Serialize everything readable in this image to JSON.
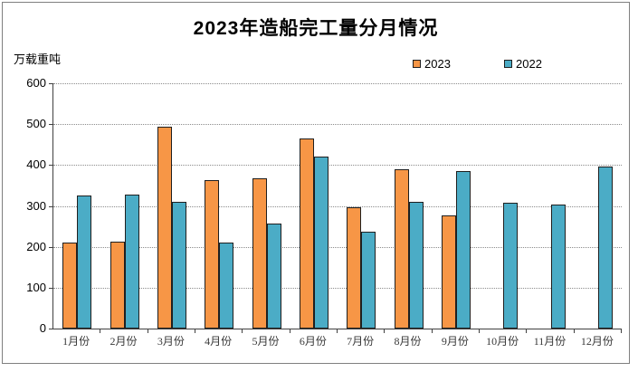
{
  "page": {
    "background_color": "#ffffff",
    "frame_border_color": "#7f7f7f"
  },
  "chart_data": {
    "type": "bar",
    "title": "2023年造船完工量分月情况",
    "unit_label": "万载重吨",
    "xlabel": "",
    "ylabel": "万载重吨",
    "categories": [
      "1月份",
      "2月份",
      "3月份",
      "4月份",
      "5月份",
      "6月份",
      "7月份",
      "8月份",
      "9月份",
      "10月份",
      "11月份",
      "12月份"
    ],
    "series": [
      {
        "name": "2023",
        "color": "#F79646",
        "values": [
          211,
          212,
          493,
          363,
          368,
          465,
          296,
          389,
          277,
          null,
          null,
          null
        ]
      },
      {
        "name": "2022",
        "color": "#4BACC6",
        "values": [
          326,
          328,
          309,
          210,
          257,
          421,
          237,
          310,
          386,
          308,
          303,
          396
        ]
      }
    ],
    "ylim": [
      0,
      600
    ],
    "yticks": [
      0,
      100,
      200,
      300,
      400,
      500,
      600
    ],
    "grid": "horizontal-dotted",
    "legend_position": "top-right",
    "bar_border_color": "#1f1f1f",
    "axis_color": "#404040",
    "gridline_color": "#8c8c8c"
  }
}
